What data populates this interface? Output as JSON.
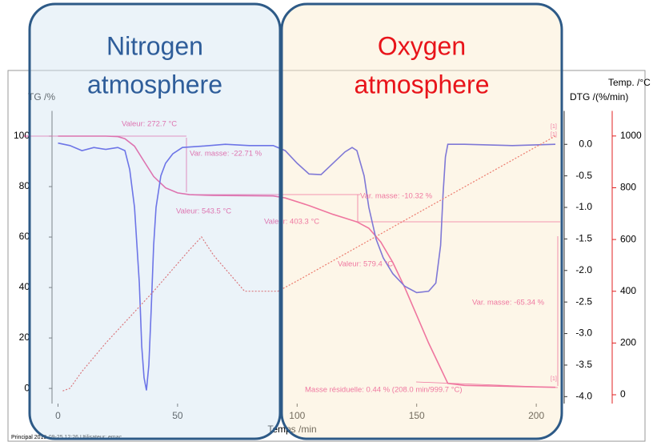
{
  "chart_data": {
    "type": "line",
    "overlay_labels": [
      {
        "lines": [
          "Nitrogen",
          "atmosphere"
        ],
        "color": "#2e5d9a"
      },
      {
        "lines": [
          "Oxygen",
          "atmosphere"
        ],
        "color": "#e8141a"
      }
    ],
    "ylabel": "TG /%",
    "y2label": "DTG /(%/min)",
    "y3label": "Temp. /°C",
    "xlabel": "Temps /min",
    "footer": "Principal   2019-09-25 12:26   Utilisateur: emac",
    "xlim": [
      -2.5,
      210
    ],
    "xticks": [
      0,
      50,
      100,
      150,
      200
    ],
    "ylim": [
      -6,
      110
    ],
    "yticks": [
      0,
      20,
      40,
      60,
      80,
      100
    ],
    "y2lim": [
      -4.11,
      0.53
    ],
    "y2ticks": [
      {
        "value": -4,
        "label": "-4.0"
      },
      -3.5,
      {
        "value": -3,
        "label": "-3.0"
      },
      -2.5,
      {
        "value": -2,
        "label": "-2.0"
      },
      -1.5,
      {
        "value": -1,
        "label": "-1.0"
      },
      -0.5,
      {
        "value": 0,
        "label": "0.0"
      }
    ],
    "y3lim": [
      -34,
      1097
    ],
    "y3ticks": [
      0,
      200,
      400,
      600,
      800,
      1000
    ],
    "y3color": "#e02020",
    "series": [
      {
        "name": "TG",
        "color": "#e5177a",
        "axis": "y",
        "x": [
          0,
          20,
          25,
          28,
          32,
          36,
          40,
          45,
          50,
          55,
          65,
          90,
          95,
          105,
          115,
          120,
          125,
          130,
          135,
          140,
          145,
          150,
          155,
          160,
          163,
          170,
          190,
          208
        ],
        "values": [
          100,
          100,
          99.8,
          99,
          96,
          90,
          84,
          79.5,
          77.5,
          76.8,
          76.5,
          76.3,
          75.5,
          72.5,
          69,
          67.5,
          66,
          63.5,
          58,
          50,
          40,
          29,
          18,
          8,
          2,
          1.2,
          0.8,
          0.44
        ]
      },
      {
        "name": "DTG",
        "color": "#1a1adf",
        "axis": "y2",
        "x": [
          0,
          5,
          10,
          15,
          20,
          25,
          28,
          30,
          32,
          34,
          35,
          36,
          37,
          38,
          39,
          40,
          41,
          43,
          45,
          48,
          52,
          60,
          70,
          80,
          90,
          95,
          100,
          105,
          110,
          115,
          120,
          123,
          125,
          128,
          130,
          133,
          136,
          140,
          145,
          150,
          155,
          158,
          160,
          161,
          162,
          163,
          170,
          190,
          208
        ],
        "values": [
          0.02,
          -0.02,
          -0.1,
          -0.05,
          -0.08,
          -0.05,
          -0.1,
          -0.4,
          -1.0,
          -2.2,
          -3.2,
          -3.7,
          -3.9,
          -3.5,
          -2.6,
          -1.6,
          -1.0,
          -0.5,
          -0.3,
          -0.15,
          -0.05,
          -0.03,
          0.0,
          -0.02,
          -0.02,
          -0.1,
          -0.3,
          -0.47,
          -0.48,
          -0.3,
          -0.12,
          -0.05,
          -0.1,
          -0.5,
          -1.0,
          -1.5,
          -1.8,
          -2.05,
          -2.25,
          -2.35,
          -2.33,
          -2.2,
          -1.6,
          -0.8,
          -0.2,
          0.0,
          0.0,
          -0.02,
          0.0
        ]
      },
      {
        "name": "Temp",
        "color": "#e02020",
        "axis": "y3",
        "dashed": true,
        "x": [
          2,
          5,
          10,
          20,
          40,
          55,
          60,
          65,
          78,
          92,
          100,
          150,
          208
        ],
        "values": [
          15,
          25,
          90,
          200,
          400,
          560,
          610,
          540,
          400,
          400,
          440,
          700,
          999.7
        ]
      }
    ],
    "annotations": [
      "Valeur: 272.7 °C",
      "Var. masse: -22.71 %",
      "Valeur: 543.5 °C",
      "Valeur: 403.3 °C",
      "Var. masse: -10.32 %",
      "Valeur: 579.4 °C",
      "Var. masse: -65.34 %",
      "Masse résiduelle: 0.44 % (208.0 min/999.7 °C)",
      "[1]",
      "[1]",
      "[1]"
    ]
  }
}
